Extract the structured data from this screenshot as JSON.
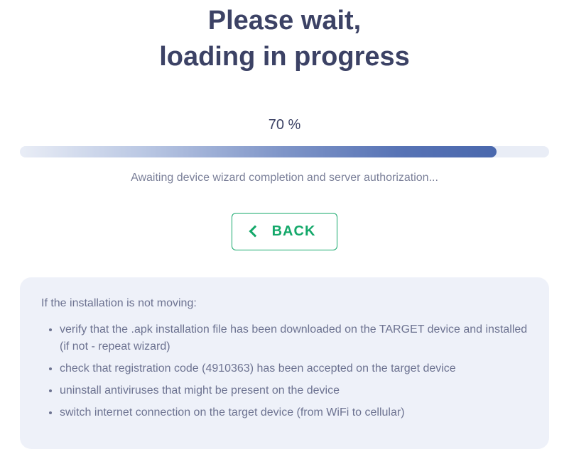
{
  "title_line1": "Please wait,",
  "title_line2": "loading in progress",
  "progress_percent": 70,
  "progress_label": "70 %",
  "status_text": "Awaiting device wizard completion and server authorization...",
  "back_label": "BACK",
  "help": {
    "heading": "If the installation is not moving:",
    "items": [
      "verify that the .apk installation file has been downloaded on the TARGET device and installed (if not - repeat wizard)",
      "check that registration code (4910363) has been accepted on the target device",
      "uninstall antiviruses that might be present on the device",
      "switch internet connection on the target device (from WiFi to cellular)"
    ]
  },
  "colors": {
    "heading": "#3c4265",
    "muted_text": "#7b8099",
    "panel_bg": "#eef1f9",
    "panel_text": "#6d7391",
    "accent_green": "#14a86a",
    "bar_track": "#e9edf6",
    "bar_gradient_stops": [
      "#e9edf6",
      "#bcc9e4",
      "#7f95c8",
      "#5773b5",
      "#4a68ad"
    ]
  }
}
